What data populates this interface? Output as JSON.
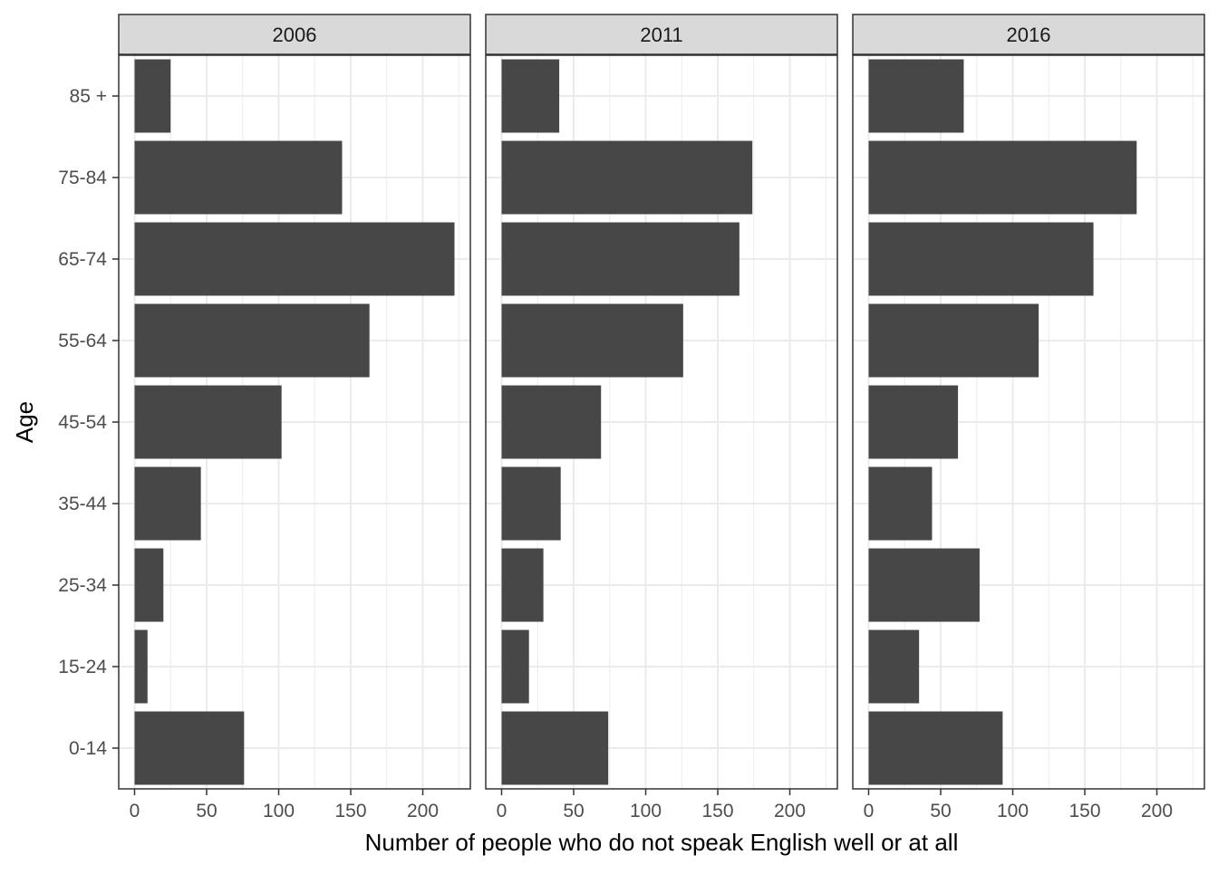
{
  "chart_data": {
    "type": "bar",
    "orientation": "horizontal",
    "faceted": true,
    "title": "",
    "xlabel": "Number of people who do not speak English well or at all",
    "ylabel": "Age",
    "categories": [
      "0-14",
      "15-24",
      "25-34",
      "35-44",
      "45-54",
      "55-64",
      "65-74",
      "75-84",
      "85 +"
    ],
    "xlim": [
      -11,
      233
    ],
    "xticks": [
      0,
      50,
      100,
      150,
      200
    ],
    "grid": true,
    "legend": "none",
    "bar_color": "#474747",
    "strip_fill": "#d9d9d9",
    "panels": [
      {
        "name": "2006",
        "values": [
          76,
          9,
          20,
          46,
          102,
          163,
          222,
          144,
          25
        ]
      },
      {
        "name": "2011",
        "values": [
          74,
          19,
          29,
          41,
          69,
          126,
          165,
          174,
          40
        ]
      },
      {
        "name": "2016",
        "values": [
          93,
          35,
          77,
          44,
          62,
          118,
          156,
          186,
          66
        ]
      }
    ]
  }
}
